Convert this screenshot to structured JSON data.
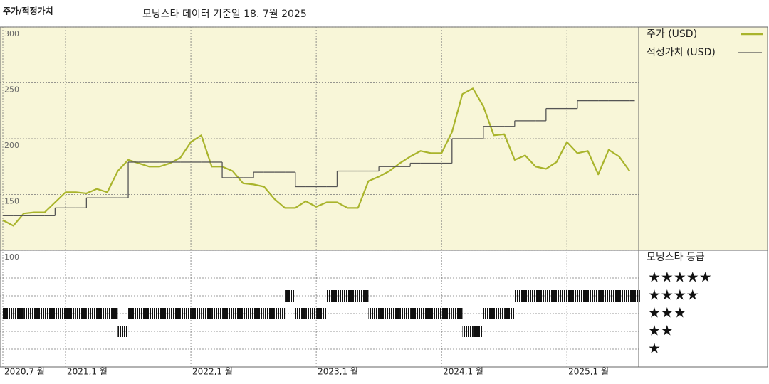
{
  "chart_data": {
    "type": "line",
    "title": "주가/적정가치",
    "subtitle": "모닝스타 데이터 기준일 18. 7월 2025",
    "x": [
      "2020-07",
      "2020-08",
      "2020-09",
      "2020-10",
      "2020-11",
      "2020-12",
      "2021-01",
      "2021-02",
      "2021-03",
      "2021-04",
      "2021-05",
      "2021-06",
      "2021-07",
      "2021-08",
      "2021-09",
      "2021-10",
      "2021-11",
      "2021-12",
      "2022-01",
      "2022-02",
      "2022-03",
      "2022-04",
      "2022-05",
      "2022-06",
      "2022-07",
      "2022-08",
      "2022-09",
      "2022-10",
      "2022-11",
      "2022-12",
      "2023-01",
      "2023-02",
      "2023-03",
      "2023-04",
      "2023-05",
      "2023-06",
      "2023-07",
      "2023-08",
      "2023-09",
      "2023-10",
      "2023-11",
      "2023-12",
      "2024-01",
      "2024-02",
      "2024-03",
      "2024-04",
      "2024-05",
      "2024-06",
      "2024-07",
      "2024-08",
      "2024-09",
      "2024-10",
      "2024-11",
      "2024-12",
      "2025-01",
      "2025-02",
      "2025-03",
      "2025-04",
      "2025-05",
      "2025-06",
      "2025-07"
    ],
    "xticks": [
      {
        "value": "2020-07",
        "label": "2020,7 월"
      },
      {
        "value": "2021-01",
        "label": "2021,1 월"
      },
      {
        "value": "2022-01",
        "label": "2022,1 월"
      },
      {
        "value": "2023-01",
        "label": "2023,1 월"
      },
      {
        "value": "2024-01",
        "label": "2024,1 월"
      },
      {
        "value": "2025-01",
        "label": "2025,1 월"
      }
    ],
    "ylim": [
      100,
      300
    ],
    "yticks": [
      100,
      150,
      200,
      250,
      300
    ],
    "grid": true,
    "series": [
      {
        "name": "주가 (USD)",
        "color": "#a9b42c",
        "values": [
          127,
          122,
          133,
          134,
          134,
          143,
          152,
          152,
          151,
          155,
          152,
          171,
          181,
          178,
          175,
          175,
          178,
          183,
          197,
          203,
          175,
          175,
          171,
          160,
          159,
          157,
          146,
          138,
          138,
          144,
          139,
          143,
          143,
          138,
          138,
          162,
          166,
          171,
          178,
          184,
          189,
          187,
          187,
          206,
          240,
          245,
          229,
          203,
          204,
          181,
          185,
          175,
          173,
          179,
          197,
          187,
          189,
          168,
          190,
          184,
          171
        ]
      },
      {
        "name": "적정가치 (USD)",
        "color": "#555555",
        "values": [
          131,
          131,
          131,
          131,
          131,
          138,
          138,
          138,
          147,
          147,
          147,
          147,
          179,
          179,
          179,
          179,
          179,
          179,
          179,
          179,
          179,
          165,
          165,
          165,
          170,
          170,
          170,
          170,
          157,
          157,
          157,
          157,
          171,
          171,
          171,
          171,
          175,
          175,
          175,
          178,
          178,
          178,
          178,
          200,
          200,
          200,
          211,
          211,
          211,
          216,
          216,
          216,
          227,
          227,
          227,
          234,
          234,
          234,
          234,
          234,
          234
        ]
      }
    ],
    "rating": {
      "title": "모닝스타 등급",
      "levels": [
        {
          "value": 5,
          "label": "★★★★★"
        },
        {
          "value": 4,
          "label": "★★★★"
        },
        {
          "value": 3,
          "label": "★★★"
        },
        {
          "value": 2,
          "label": "★★"
        },
        {
          "value": 1,
          "label": "★"
        }
      ],
      "values": [
        3,
        3,
        3,
        3,
        3,
        3,
        3,
        3,
        3,
        3,
        3,
        2,
        3,
        3,
        3,
        3,
        3,
        3,
        3,
        3,
        3,
        3,
        3,
        3,
        3,
        3,
        3,
        4,
        3,
        3,
        3,
        4,
        4,
        4,
        4,
        3,
        3,
        3,
        3,
        3,
        3,
        3,
        3,
        3,
        2,
        2,
        3,
        3,
        3,
        4,
        4,
        4,
        4,
        4,
        4,
        4,
        4,
        4,
        4,
        4,
        4
      ]
    }
  }
}
